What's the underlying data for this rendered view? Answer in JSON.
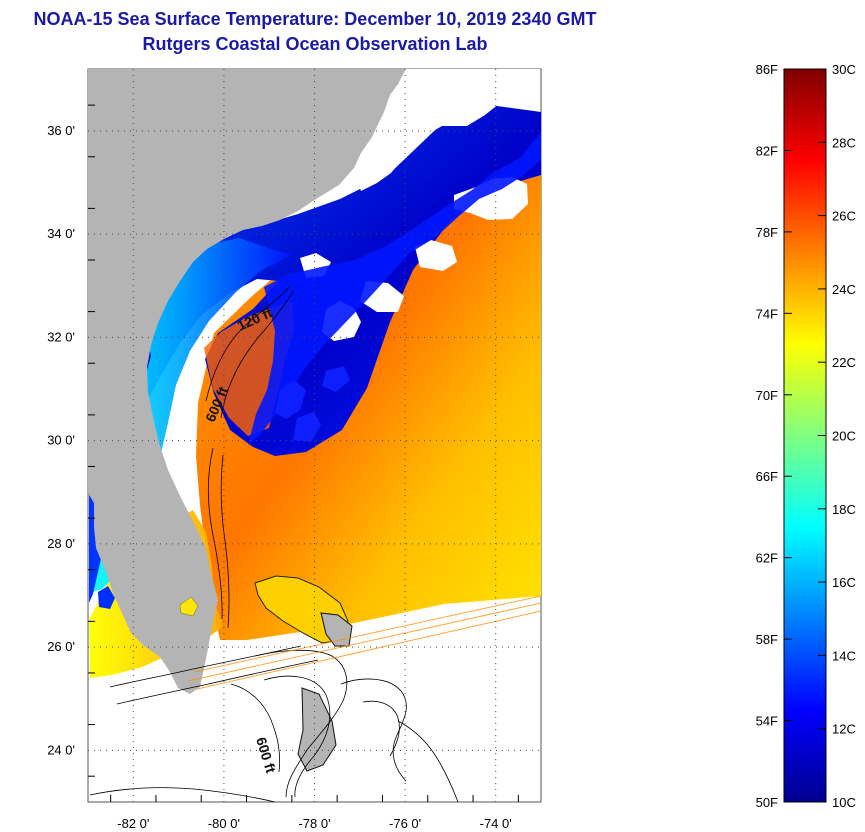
{
  "title": "NOAA-15 Sea Surface Temperature:  December 10, 2019 2340 GMT",
  "subtitle": "Rutgers Coastal Ocean Observation Lab",
  "map": {
    "region": "Southeast U.S. coast / Florida / Bahamas",
    "latitude_labels": [
      {
        "value": 36,
        "label": "36 0'"
      },
      {
        "value": 34,
        "label": "34 0'"
      },
      {
        "value": 32,
        "label": "32 0'"
      },
      {
        "value": 30,
        "label": "30 0'"
      },
      {
        "value": 28,
        "label": "28 0'"
      },
      {
        "value": 26,
        "label": "26 0'"
      },
      {
        "value": 24,
        "label": "24 0'"
      }
    ],
    "longitude_labels": [
      {
        "value": -82,
        "label": "-82 0'"
      },
      {
        "value": -80,
        "label": "-80 0'"
      },
      {
        "value": -78,
        "label": "-78 0'"
      },
      {
        "value": -76,
        "label": "-76 0'"
      },
      {
        "value": -74,
        "label": "-74 0'"
      }
    ],
    "lat_range": [
      23,
      37.2
    ],
    "lon_range": [
      -83,
      -73
    ],
    "contour_labels": [
      "120 ft",
      "600 ft",
      "600 ft"
    ],
    "colors": {
      "land": "#b4b4b4",
      "no_data": "#ffffff",
      "grid": "#4a4a4a"
    }
  },
  "colorbar": {
    "fahrenheit_labels": [
      "86F",
      "82F",
      "78F",
      "74F",
      "70F",
      "66F",
      "62F",
      "58F",
      "54F",
      "50F"
    ],
    "celsius_labels": [
      "30C",
      "28C",
      "26C",
      "24C",
      "22C",
      "20C",
      "18C",
      "16C",
      "14C",
      "12C",
      "10C"
    ],
    "min_c": 10,
    "max_c": 30,
    "gradient": [
      "#00008f",
      "#0000ff",
      "#0080ff",
      "#00ffff",
      "#80ff80",
      "#ffff00",
      "#ff8000",
      "#ff0000",
      "#800000"
    ]
  }
}
